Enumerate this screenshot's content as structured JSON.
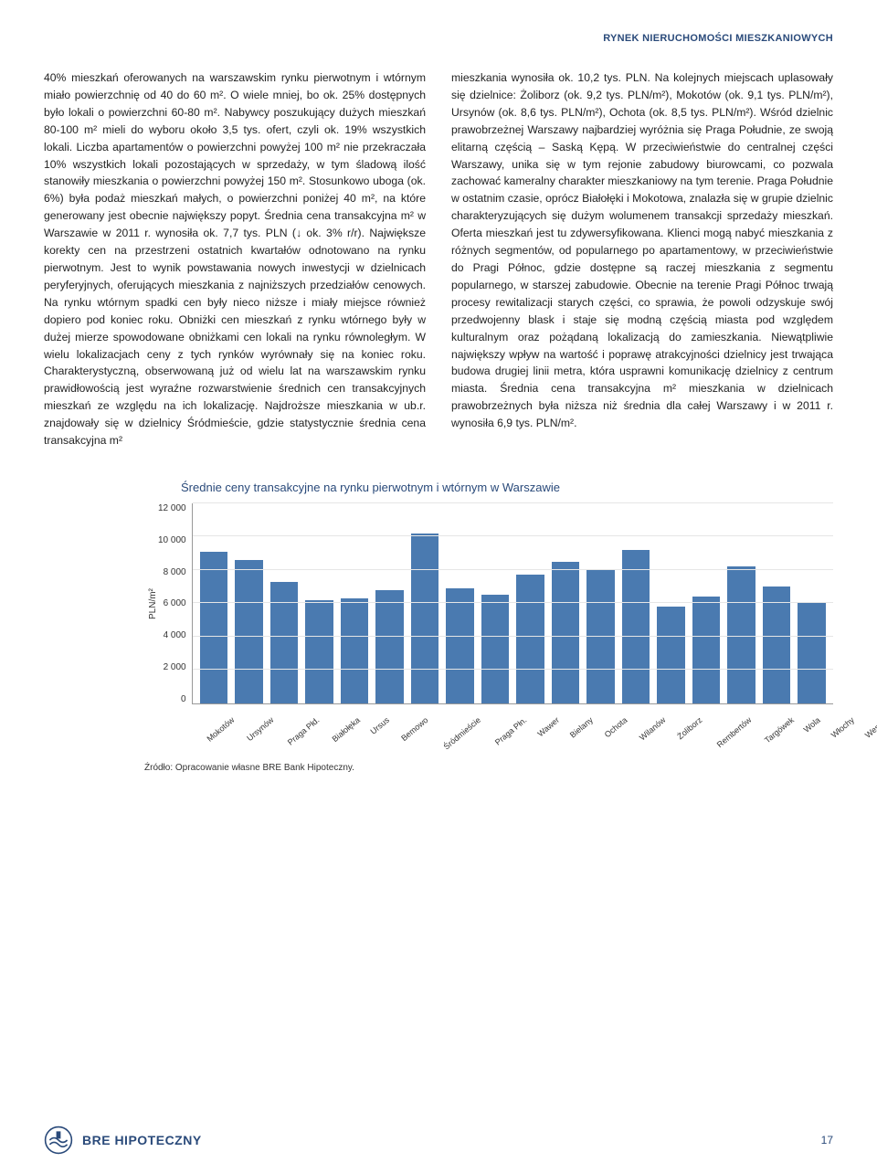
{
  "header": {
    "section_label": "RYNEK NIERUCHOMOŚCI MIESZKANIOWYCH"
  },
  "body": {
    "col_left": "40% mieszkań oferowanych na warszawskim rynku pierwotnym i wtórnym miało powierzchnię od 40 do 60 m². O wiele mniej, bo ok. 25% dostępnych było lokali o powierzchni 60-80 m². Nabywcy poszukujący dużych mieszkań 80-100 m² mieli do wyboru około 3,5 tys. ofert, czyli ok. 19% wszystkich lokali. Liczba apartamentów o powierzchni powyżej 100 m² nie przekraczała 10% wszystkich lokali pozostających w sprzedaży, w tym śladową ilość stanowiły mieszkania o powierzchni powyżej 150 m². Stosunkowo uboga (ok. 6%) była podaż mieszkań małych, o powierzchni poniżej 40 m², na które generowany jest obecnie największy popyt.\nŚrednia cena transakcyjna m² w Warszawie w 2011 r. wynosiła ok. 7,7 tys. PLN (↓ ok. 3% r/r). Największe korekty cen na przestrzeni ostatnich kwartałów odnotowano na rynku pierwotnym. Jest to wynik powstawania nowych inwestycji w dzielnicach peryferyjnych, oferujących mieszkania z najniższych przedziałów cenowych. Na rynku wtórnym spadki cen były nieco niższe i miały miejsce również dopiero pod koniec roku. Obniżki cen mieszkań z rynku wtórnego były w dużej mierze spowodowane obniżkami cen lokali na rynku równoległym. W wielu lokalizacjach ceny z tych rynków wyrównały się na koniec roku. Charakterystyczną, obserwowaną już od wielu lat na warszawskim rynku prawidłowością jest wyraźne rozwarstwienie średnich cen transakcyjnych mieszkań ze względu na ich lokalizację. Najdroższe mieszkania w ub.r. znajdowały się w dzielnicy Śródmieście, gdzie statystycznie średnia cena transakcyjna m²",
    "col_right": "mieszkania wynosiła ok. 10,2 tys. PLN. Na kolejnych miejscach uplasowały się dzielnice: Żoliborz (ok. 9,2 tys. PLN/m²), Mokotów (ok. 9,1 tys. PLN/m²), Ursynów (ok. 8,6 tys. PLN/m²), Ochota (ok. 8,5 tys. PLN/m²).\nWśród dzielnic prawobrzeżnej Warszawy najbardziej wyróżnia się Praga Południe, ze swoją elitarną częścią – Saską Kępą. W przeciwieństwie do centralnej części Warszawy, unika się w tym rejonie zabudowy biurowcami, co pozwala zachować kameralny charakter mieszkaniowy na tym terenie. Praga Południe w ostatnim czasie, oprócz Białołęki i Mokotowa, znalazła się w grupie dzielnic charakteryzujących się dużym wolumenem transakcji sprzedaży mieszkań. Oferta mieszkań jest tu zdywersyfikowana. Klienci mogą nabyć mieszkania z różnych segmentów, od popularnego po apartamentowy, w przeciwieństwie do Pragi Północ, gdzie dostępne są raczej mieszkania z segmentu popularnego, w starszej zabudowie. Obecnie na terenie Pragi Północ trwają procesy rewitalizacji starych części, co sprawia, że powoli odzyskuje swój przedwojenny blask i staje się modną częścią miasta pod względem kulturalnym oraz pożądaną lokalizacją do zamieszkania. Niewątpliwie największy wpływ na wartość i poprawę atrakcyjności dzielnicy jest trwająca budowa drugiej linii metra, która usprawni komunikację dzielnicy z centrum miasta.\nŚrednia cena transakcyjna m² mieszkania w dzielnicach prawobrzeżnych była niższa niż średnia dla całej Warszawy i w 2011 r. wynosiła 6,9 tys. PLN/m²."
  },
  "chart": {
    "title": "Średnie ceny transakcyjne na rynku pierwotnym i wtórnym w Warszawie",
    "type": "bar",
    "ylabel": "PLN/m²",
    "ylim": [
      0,
      12000
    ],
    "ytick_step": 2000,
    "yticks": [
      "12 000",
      "10 000",
      "8 000",
      "6 000",
      "4 000",
      "2 000",
      "0"
    ],
    "bar_color": "#4a7ab0",
    "grid_color": "#e6e6e6",
    "background_color": "#ffffff",
    "categories": [
      "Mokotów",
      "Ursynów",
      "Praga Płd.",
      "Białołęka",
      "Ursus",
      "Bemowo",
      "Śródmieście",
      "Praga Płn.",
      "Wawer",
      "Bielany",
      "Ochota",
      "Wilanów",
      "Żoliborz",
      "Rembertów",
      "Targówek",
      "Wola",
      "Włochy",
      "Wesoła"
    ],
    "values": [
      9100,
      8600,
      7300,
      6200,
      6300,
      6800,
      10200,
      6900,
      6500,
      7700,
      8500,
      8000,
      9200,
      5800,
      6400,
      8200,
      7000,
      6100
    ],
    "label_fontsize": 10,
    "title_fontsize": 13,
    "source": "Źródło: Opracowanie własne BRE Bank Hipoteczny."
  },
  "footer": {
    "brand": "BRE HIPOTECZNY",
    "page_number": "17"
  }
}
